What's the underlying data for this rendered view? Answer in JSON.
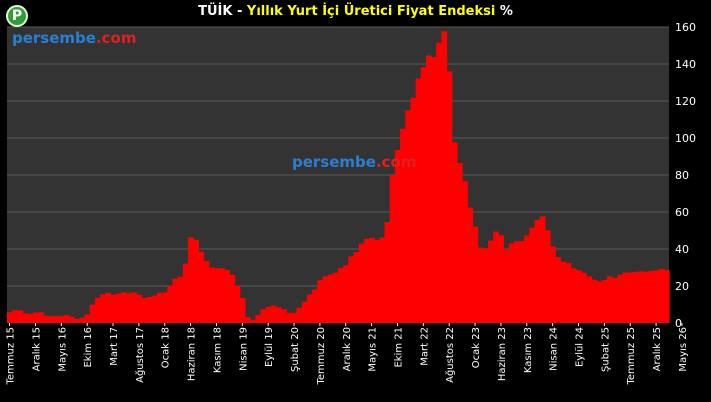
{
  "logo_letter": "P",
  "title_part1": "TÜİK - ",
  "title_part2": "Yıllık Yurt İçi Üretici Fiyat Endeksi",
  "title_part3": " %",
  "watermark": {
    "part1": "persembe",
    "part2": ".com"
  },
  "colors": {
    "background": "#000000",
    "plot_bg": "#333333",
    "grid": "#595959",
    "bar": "#ff0000",
    "text": "#ffffff",
    "title_accent": "#ffff00"
  },
  "chart_data": {
    "type": "bar",
    "title": "TÜİK - Yıllık Yurt İçi Üretici Fiyat Endeksi %",
    "ylim": [
      0,
      160
    ],
    "yticks": [
      0,
      20,
      40,
      60,
      80,
      100,
      120,
      140,
      160
    ],
    "grid": true,
    "x_tick_labels": [
      "Temmuz 15",
      "Aralık 15",
      "Mayıs 16",
      "Ekim 16",
      "Mart 17",
      "Ağustos 17",
      "Ocak 18",
      "Haziran 18",
      "Kasım 18",
      "Nisan 19",
      "Eylül 19",
      "Şubat 20",
      "Temmuz 20",
      "Aralık 20",
      "Mayıs 21",
      "Ekim 21",
      "Mart 22",
      "Ağustos 22",
      "Ocak 23",
      "Haziran 23",
      "Kasım 23",
      "Nisan 24",
      "Eylül 24",
      "Şubat 25",
      "Temmuz 25",
      "Aralık 25",
      "Mayıs 26"
    ],
    "x_tick_every": 5,
    "start_period": "Temmuz 15",
    "values": [
      5.8,
      6.9,
      6.9,
      5.3,
      5.0,
      5.7,
      5.8,
      4.0,
      3.8,
      3.8,
      3.9,
      4.3,
      3.3,
      2.2,
      2.8,
      4.6,
      9.9,
      13.6,
      15.5,
      16.3,
      15.3,
      15.8,
      16.6,
      16.1,
      16.5,
      15.3,
      13.6,
      14.1,
      14.9,
      16.3,
      16.5,
      20.2,
      23.9,
      25.0,
      32.1,
      46.2,
      45.0,
      38.5,
      33.6,
      30.0,
      29.6,
      29.6,
      28.7,
      26.0,
      20.2,
      13.5,
      3.1,
      1.7,
      4.3,
      7.4,
      8.8,
      9.4,
      8.5,
      7.4,
      5.5,
      5.5,
      8.3,
      11.5,
      15.5,
      18.2,
      23.1,
      25.2,
      26.2,
      27.2,
      29.7,
      31.2,
      36.0,
      38.3,
      42.9,
      45.5,
      46.0,
      44.9,
      46.2,
      54.6,
      79.9,
      93.5,
      105.0,
      114.9,
      121.8,
      132.2,
      138.3,
      144.6,
      143.8,
      151.5,
      157.7,
      136.0,
      97.7,
      86.5,
      76.6,
      62.4,
      52.1,
      40.8,
      40.4,
      44.5,
      49.4,
      47.4,
      39.4,
      43.0,
      44.2,
      44.2,
      47.3,
      51.5,
      55.7,
      57.7,
      50.1,
      41.4,
      35.6,
      33.1,
      32.4,
      29.5,
      28.5,
      27.2,
      25.2,
      23.5,
      22.5,
      23.2,
      25.2,
      24.3,
      26.1,
      27.3,
      27.3,
      27.7,
      27.9,
      27.7,
      28.1,
      28.4,
      29.2,
      28.7
    ]
  }
}
